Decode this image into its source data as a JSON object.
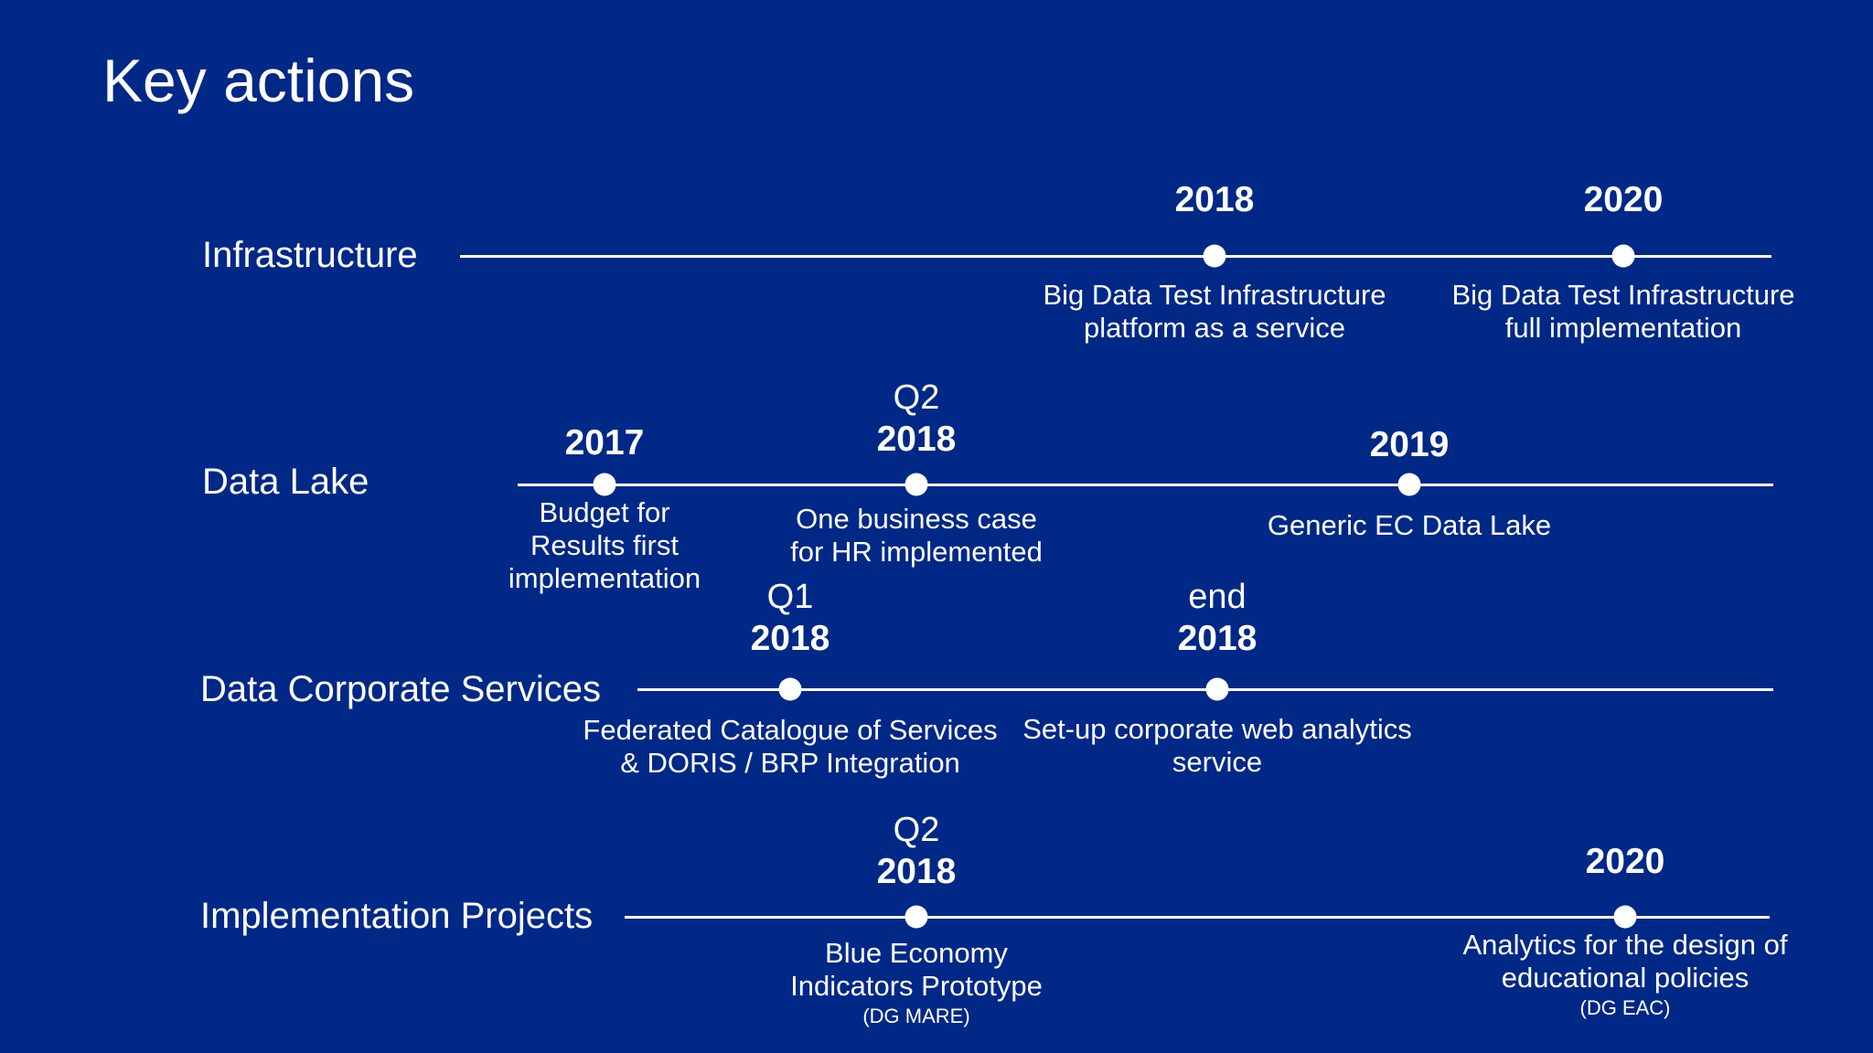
{
  "title": "Key actions",
  "rows": [
    {
      "label": "Infrastructure",
      "milestones": [
        {
          "pre": "",
          "year": "2018",
          "desc": [
            "Big Data Test Infrastructure",
            "platform as a service"
          ],
          "note": ""
        },
        {
          "pre": "",
          "year": "2020",
          "desc": [
            "Big Data Test Infrastructure",
            "full implementation"
          ],
          "note": ""
        }
      ]
    },
    {
      "label": "Data Lake",
      "milestones": [
        {
          "pre": "",
          "year": "2017",
          "desc": [
            "Budget for",
            "Results first",
            "implementation"
          ],
          "note": ""
        },
        {
          "pre": "Q2",
          "year": "2018",
          "desc": [
            "One business case",
            "for HR implemented"
          ],
          "note": ""
        },
        {
          "pre": "",
          "year": "2019",
          "desc": [
            "Generic EC Data Lake"
          ],
          "note": ""
        }
      ]
    },
    {
      "label": "Data Corporate Services",
      "milestones": [
        {
          "pre": "Q1",
          "year": "2018",
          "desc": [
            "Federated Catalogue of Services",
            "& DORIS / BRP Integration"
          ],
          "note": ""
        },
        {
          "pre": "end",
          "year": "2018",
          "desc": [
            "Set-up corporate web analytics",
            "service"
          ],
          "note": ""
        }
      ]
    },
    {
      "label": "Implementation Projects",
      "milestones": [
        {
          "pre": "Q2",
          "year": "2018",
          "desc": [
            "Blue Economy",
            "Indicators Prototype"
          ],
          "note": "(DG MARE)"
        },
        {
          "pre": "",
          "year": "2020",
          "desc": [
            "Analytics for the design of",
            "educational policies"
          ],
          "note": "(DG EAC)"
        }
      ]
    }
  ]
}
